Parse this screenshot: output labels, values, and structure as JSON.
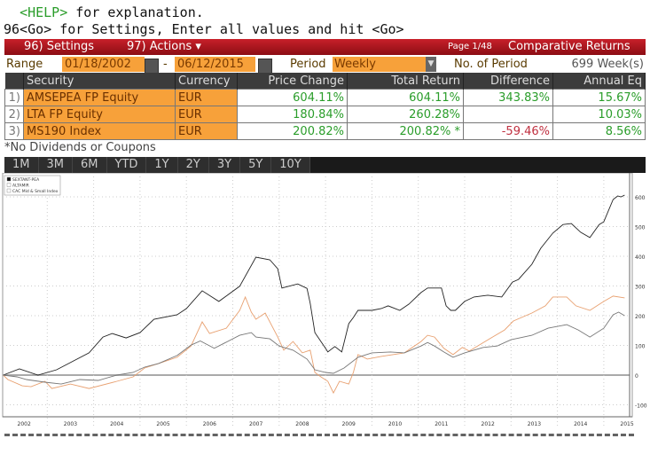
{
  "command": {
    "help_key": "<HELP>",
    "help_text": " for explanation.",
    "settings_line": "96<Go> for Settings, Enter all values and hit <Go>"
  },
  "toolbar": {
    "settings": "96) Settings",
    "actions": "97) Actions ▾",
    "page": "Page 1/48",
    "title": "Comparative Returns"
  },
  "range": {
    "label": "Range",
    "start": "01/18/2002",
    "dash": "-",
    "end": "06/12/2015",
    "period_label": "Period",
    "period": "Weekly",
    "num_label": "No. of Period",
    "num": "699 Week(s)"
  },
  "table": {
    "headers": [
      "Security",
      "Currency",
      "Price Change",
      "Total Return",
      "Difference",
      "Annual Eq"
    ],
    "rows": [
      {
        "idx": "1)",
        "security": "AMSEPEA FP Equity",
        "currency": "EUR",
        "price": "604.11%",
        "total": "604.11%",
        "diff": "343.83%",
        "annual": "15.67%"
      },
      {
        "idx": "2)",
        "security": "LTA FP Equity",
        "currency": "EUR",
        "price": "180.84%",
        "total": "260.28%",
        "diff": "",
        "annual": "10.03%"
      },
      {
        "idx": "3)",
        "security": "MS190 Index",
        "currency": "EUR",
        "price": "200.82%",
        "total": "200.82% *",
        "diff": "-59.46%",
        "annual": "8.56%"
      }
    ]
  },
  "note": "*No Dividends or Coupons",
  "tabs": [
    "1M",
    "3M",
    "6M",
    "YTD",
    "1Y",
    "2Y",
    "3Y",
    "5Y",
    "10Y"
  ],
  "chart_data": {
    "type": "line",
    "xlim": [
      2002.05,
      2015.45
    ],
    "ylim": [
      -120,
      640
    ],
    "x_ticks": [
      "2002",
      "2003",
      "2004",
      "2005",
      "2006",
      "2007",
      "2008",
      "2009",
      "2010",
      "2011",
      "2012",
      "2013",
      "2014",
      "2015"
    ],
    "y_ticks": [
      -100,
      0,
      100,
      200,
      300,
      400,
      500,
      600
    ],
    "grid": true,
    "legend": "top-left",
    "series": [
      {
        "name": "SEXTANT-PEA",
        "color": "#222222",
        "points": [
          [
            2002.05,
            0
          ],
          [
            2002.4,
            21
          ],
          [
            2002.8,
            0
          ],
          [
            2003.2,
            18
          ],
          [
            2003.9,
            75
          ],
          [
            2004.2,
            128
          ],
          [
            2004.4,
            140
          ],
          [
            2004.7,
            125
          ],
          [
            2005.0,
            143
          ],
          [
            2005.3,
            188
          ],
          [
            2005.8,
            203
          ],
          [
            2006.0,
            224
          ],
          [
            2006.34,
            284
          ],
          [
            2006.7,
            248
          ],
          [
            2007.15,
            299
          ],
          [
            2007.5,
            397
          ],
          [
            2007.8,
            388
          ],
          [
            2007.97,
            358
          ],
          [
            2008.06,
            293
          ],
          [
            2008.4,
            307
          ],
          [
            2008.6,
            292
          ],
          [
            2008.67,
            242
          ],
          [
            2008.77,
            143
          ],
          [
            2008.9,
            113
          ],
          [
            2009.0,
            90
          ],
          [
            2009.05,
            78
          ],
          [
            2009.2,
            96
          ],
          [
            2009.35,
            78
          ],
          [
            2009.5,
            173
          ],
          [
            2009.6,
            194
          ],
          [
            2009.7,
            218
          ],
          [
            2010.0,
            218
          ],
          [
            2010.2,
            224
          ],
          [
            2010.35,
            233
          ],
          [
            2010.6,
            218
          ],
          [
            2010.8,
            239
          ],
          [
            2011.06,
            278
          ],
          [
            2011.2,
            293
          ],
          [
            2011.5,
            293
          ],
          [
            2011.6,
            233
          ],
          [
            2011.7,
            218
          ],
          [
            2011.8,
            218
          ],
          [
            2012.0,
            248
          ],
          [
            2012.2,
            263
          ],
          [
            2012.5,
            269
          ],
          [
            2012.8,
            263
          ],
          [
            2013.03,
            313
          ],
          [
            2013.16,
            322
          ],
          [
            2013.45,
            373
          ],
          [
            2013.64,
            427
          ],
          [
            2013.9,
            478
          ],
          [
            2014.12,
            507
          ],
          [
            2014.3,
            510
          ],
          [
            2014.5,
            481
          ],
          [
            2014.7,
            463
          ],
          [
            2014.9,
            507
          ],
          [
            2015.0,
            516
          ],
          [
            2015.2,
            591
          ],
          [
            2015.3,
            603
          ],
          [
            2015.37,
            600
          ],
          [
            2015.45,
            606
          ]
        ]
      },
      {
        "name": "ALTAMIR",
        "color": "#e8a070",
        "points": [
          [
            2002.05,
            0
          ],
          [
            2002.15,
            -15
          ],
          [
            2002.46,
            -36
          ],
          [
            2002.65,
            -39
          ],
          [
            2002.95,
            -21
          ],
          [
            2003.1,
            -45
          ],
          [
            2003.5,
            -30
          ],
          [
            2003.9,
            -45
          ],
          [
            2004.5,
            -21
          ],
          [
            2004.85,
            -6
          ],
          [
            2005.1,
            24
          ],
          [
            2005.4,
            39
          ],
          [
            2005.8,
            60
          ],
          [
            2006.1,
            98
          ],
          [
            2006.34,
            179
          ],
          [
            2006.5,
            140
          ],
          [
            2006.86,
            158
          ],
          [
            2007.15,
            218
          ],
          [
            2007.27,
            263
          ],
          [
            2007.4,
            212
          ],
          [
            2007.5,
            188
          ],
          [
            2007.7,
            209
          ],
          [
            2007.97,
            128
          ],
          [
            2008.1,
            84
          ],
          [
            2008.3,
            113
          ],
          [
            2008.5,
            75
          ],
          [
            2008.67,
            84
          ],
          [
            2008.77,
            9
          ],
          [
            2008.9,
            -6
          ],
          [
            2009.05,
            -21
          ],
          [
            2009.17,
            -60
          ],
          [
            2009.3,
            -21
          ],
          [
            2009.5,
            -30
          ],
          [
            2009.6,
            9
          ],
          [
            2009.7,
            69
          ],
          [
            2009.9,
            54
          ],
          [
            2010.2,
            63
          ],
          [
            2010.7,
            75
          ],
          [
            2011.06,
            113
          ],
          [
            2011.2,
            134
          ],
          [
            2011.35,
            128
          ],
          [
            2011.55,
            90
          ],
          [
            2011.75,
            69
          ],
          [
            2011.95,
            93
          ],
          [
            2012.1,
            81
          ],
          [
            2012.6,
            128
          ],
          [
            2012.86,
            152
          ],
          [
            2013.05,
            182
          ],
          [
            2013.45,
            209
          ],
          [
            2013.74,
            233
          ],
          [
            2013.9,
            263
          ],
          [
            2014.2,
            263
          ],
          [
            2014.4,
            233
          ],
          [
            2014.7,
            218
          ],
          [
            2015.0,
            248
          ],
          [
            2015.2,
            266
          ],
          [
            2015.45,
            260
          ]
        ]
      },
      {
        "name": "CAC Mid & Small Index",
        "color": "#777777",
        "points": [
          [
            2002.05,
            0
          ],
          [
            2002.35,
            -6
          ],
          [
            2002.55,
            -15
          ],
          [
            2002.95,
            -24
          ],
          [
            2003.3,
            -30
          ],
          [
            2003.7,
            -15
          ],
          [
            2004.1,
            -18
          ],
          [
            2004.5,
            0
          ],
          [
            2004.85,
            9
          ],
          [
            2005.1,
            27
          ],
          [
            2005.4,
            39
          ],
          [
            2005.8,
            66
          ],
          [
            2006.1,
            101
          ],
          [
            2006.3,
            115
          ],
          [
            2006.6,
            90
          ],
          [
            2007.15,
            134
          ],
          [
            2007.4,
            143
          ],
          [
            2007.5,
            128
          ],
          [
            2007.8,
            122
          ],
          [
            2008.0,
            98
          ],
          [
            2008.3,
            84
          ],
          [
            2008.6,
            54
          ],
          [
            2008.77,
            18
          ],
          [
            2009.0,
            9
          ],
          [
            2009.17,
            6
          ],
          [
            2009.4,
            24
          ],
          [
            2009.7,
            60
          ],
          [
            2010.0,
            75
          ],
          [
            2010.4,
            78
          ],
          [
            2010.7,
            75
          ],
          [
            2011.06,
            98
          ],
          [
            2011.2,
            110
          ],
          [
            2011.35,
            98
          ],
          [
            2011.55,
            78
          ],
          [
            2011.75,
            60
          ],
          [
            2012.0,
            75
          ],
          [
            2012.4,
            93
          ],
          [
            2012.7,
            98
          ],
          [
            2013.0,
            119
          ],
          [
            2013.45,
            134
          ],
          [
            2013.8,
            158
          ],
          [
            2014.2,
            170
          ],
          [
            2014.45,
            152
          ],
          [
            2014.7,
            128
          ],
          [
            2015.0,
            158
          ],
          [
            2015.2,
            203
          ],
          [
            2015.32,
            212
          ],
          [
            2015.45,
            200
          ]
        ]
      }
    ]
  }
}
